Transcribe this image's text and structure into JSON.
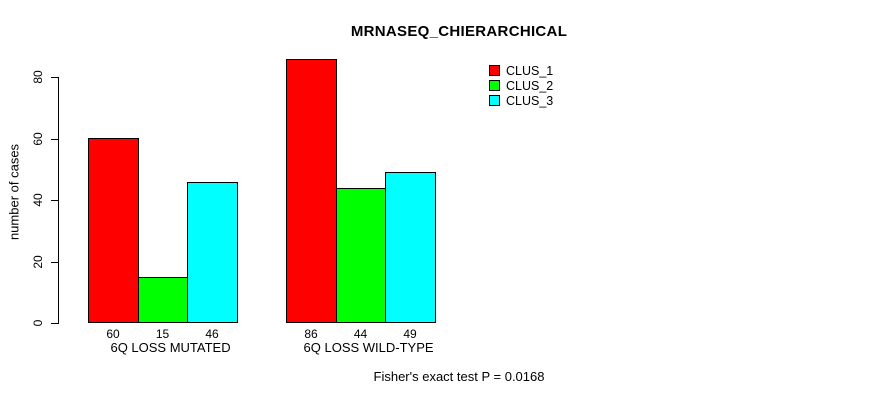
{
  "chart_data": {
    "type": "bar",
    "title": "MRNASEQ_CHIERARCHICAL",
    "ylabel": "number of cases",
    "xlabel": "",
    "categories": [
      "6Q LOSS MUTATED",
      "6Q LOSS WILD-TYPE"
    ],
    "series": [
      {
        "name": "CLUS_1",
        "color": "#ff0000",
        "values": [
          60,
          86
        ]
      },
      {
        "name": "CLUS_2",
        "color": "#00ff00",
        "values": [
          15,
          44
        ]
      },
      {
        "name": "CLUS_3",
        "color": "#00ffff",
        "values": [
          46,
          49
        ]
      }
    ],
    "y_ticks": [
      0,
      20,
      40,
      60,
      80
    ],
    "ylim": [
      0,
      86
    ],
    "grid": false,
    "bar_value_labels": true,
    "legend_position": "top-right",
    "annotation": "Fisher's exact test P = 0.0168"
  }
}
